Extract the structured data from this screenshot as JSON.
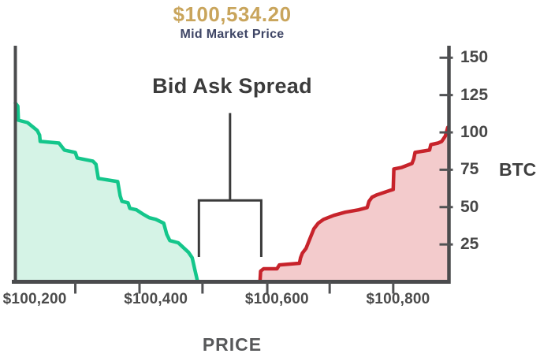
{
  "header": {
    "mid_market_price": "$100,534.20",
    "mid_market_label": "Mid Market Price",
    "price_color": "#C9A55C",
    "label_color": "#3E4565"
  },
  "chart_data": {
    "type": "area",
    "title": "Bid Ask Spread",
    "xlabel": "PRICE",
    "ylabel": "BTC",
    "x_range": [
      100168,
      100884
    ],
    "y_range": [
      0,
      157
    ],
    "x_ticks": {
      "labels": [
        "$100,200",
        "$100,400",
        "$100,600",
        "$100,800"
      ],
      "values": [
        100200,
        100400,
        100600,
        100800
      ]
    },
    "x_minor_ticks": [
      100267,
      100373,
      100477,
      100584,
      100687,
      100792
    ],
    "y_ticks": [
      25,
      50,
      75,
      100,
      125,
      150
    ],
    "axis_color": "#4A4B4D",
    "tick_color": "#515254",
    "annotation": {
      "label": "Bid Ask Spread",
      "from_price": 100471,
      "to_price": 100574,
      "stem_top_btc": 113,
      "bar_btc": 54.5,
      "arm_bottom_btc": 16.6,
      "color": "#3A3A3A"
    },
    "series": [
      {
        "name": "bids",
        "line_color": "#14C68B",
        "fill_color": "#D5F3E6",
        "points": [
          [
            100168,
            119.7
          ],
          [
            100172,
            117.6
          ],
          [
            100173,
            108.2
          ],
          [
            100188,
            106.6
          ],
          [
            100204,
            101.3
          ],
          [
            100208,
            98.2
          ],
          [
            100209,
            94.0
          ],
          [
            100240,
            92.9
          ],
          [
            100249,
            88.2
          ],
          [
            100267,
            86.6
          ],
          [
            100270,
            82.9
          ],
          [
            100296,
            80.8
          ],
          [
            100301,
            78.7
          ],
          [
            100305,
            69.2
          ],
          [
            100337,
            67.1
          ],
          [
            100341,
            57.6
          ],
          [
            100344,
            53.9
          ],
          [
            100354,
            52.9
          ],
          [
            100357,
            49.2
          ],
          [
            100368,
            48.2
          ],
          [
            100378,
            45.5
          ],
          [
            100389,
            42.9
          ],
          [
            100400,
            41.8
          ],
          [
            100413,
            39.2
          ],
          [
            100418,
            31.8
          ],
          [
            100423,
            27.6
          ],
          [
            100437,
            26.1
          ],
          [
            100454,
            19.7
          ],
          [
            100460,
            16.1
          ],
          [
            100464,
            8.7
          ],
          [
            100469,
            0
          ]
        ]
      },
      {
        "name": "asks",
        "line_color": "#C7232B",
        "fill_color": "#F3CBCC",
        "points": [
          [
            100572,
            0
          ],
          [
            100573,
            7.1
          ],
          [
            100578,
            8.7
          ],
          [
            100600,
            8.7
          ],
          [
            100604,
            11.3
          ],
          [
            100637,
            12.4
          ],
          [
            100639,
            16.1
          ],
          [
            100642,
            19.2
          ],
          [
            100648,
            22.4
          ],
          [
            100661,
            35.5
          ],
          [
            100668,
            39.2
          ],
          [
            100677,
            41.8
          ],
          [
            100694,
            44.5
          ],
          [
            100713,
            46.6
          ],
          [
            100735,
            48.2
          ],
          [
            100749,
            49.7
          ],
          [
            100752,
            53.9
          ],
          [
            100757,
            56.6
          ],
          [
            100765,
            58.2
          ],
          [
            100788,
            61.3
          ],
          [
            100792,
            61.8
          ],
          [
            100793,
            75.5
          ],
          [
            100806,
            76.6
          ],
          [
            100823,
            79.2
          ],
          [
            100826,
            82.4
          ],
          [
            100828,
            86.6
          ],
          [
            100852,
            88.2
          ],
          [
            100854,
            91.8
          ],
          [
            100866,
            92.9
          ],
          [
            100872,
            94.0
          ],
          [
            100878,
            97.6
          ],
          [
            100882,
            103.4
          ]
        ]
      }
    ]
  }
}
